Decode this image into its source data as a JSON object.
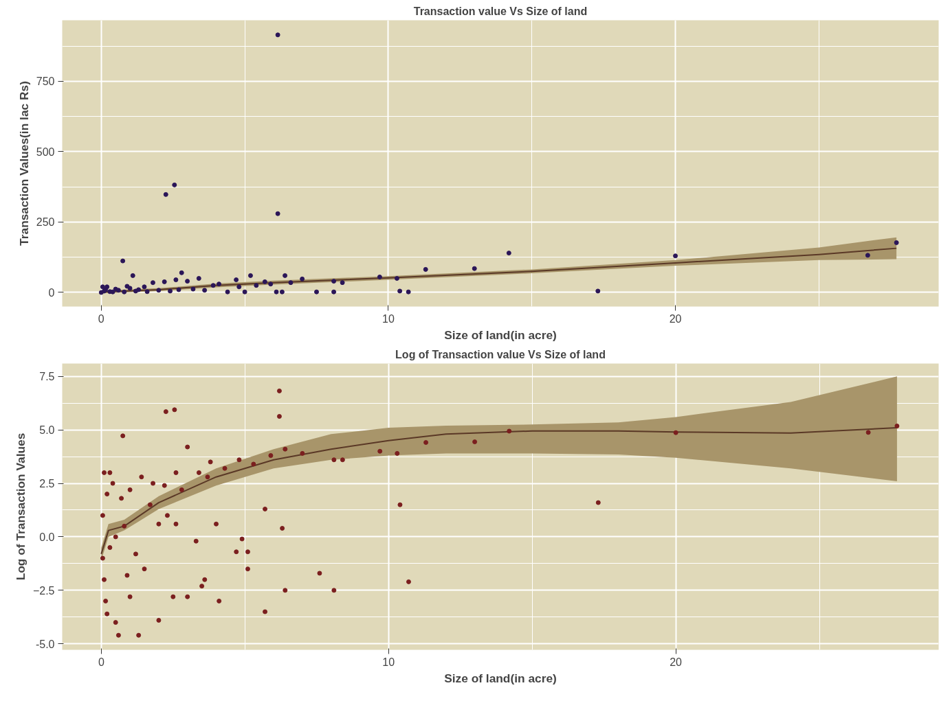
{
  "chart_data": [
    {
      "type": "scatter",
      "title": "Transaction value Vs Size of land",
      "xlabel": "Size of land(in acre)",
      "ylabel": "Transaction Values(in lac Rs)",
      "xlim": [
        -1.36,
        29.17
      ],
      "ylim": [
        -50,
        967
      ],
      "xticks": [
        0,
        10,
        20
      ],
      "yticks": [
        0,
        250,
        500,
        750
      ],
      "grid": true,
      "series": [
        {
          "marker": "circle",
          "color": "#2b1658",
          "x": [
            6.15,
            2.25,
            2.55,
            6.15,
            0.75,
            14.2,
            20,
            26.7,
            27.7,
            17.3,
            11.3,
            13,
            9.7,
            10.4,
            10.7,
            10.3,
            8.1,
            8.1,
            8.4,
            7.5,
            7.0,
            6.4,
            5.2,
            2.8,
            1.1,
            6.3,
            6.1,
            5.7,
            5.0,
            4.7,
            4.1,
            3.4,
            3.0,
            2.6,
            2.2,
            1.8,
            1.5,
            1.0,
            0.5,
            0.2,
            0.1,
            0,
            0.3,
            0.6,
            0.8,
            1.2,
            1.6,
            2.0,
            2.4,
            2.7,
            3.2,
            3.6,
            3.9,
            4.4,
            4.8,
            5.4,
            5.9,
            6.6,
            0.05,
            0.15,
            0.4,
            0.9,
            1.3
          ],
          "values": [
            915,
            348,
            382,
            280,
            112,
            140,
            130,
            132,
            177,
            5,
            82,
            85,
            55,
            5,
            2,
            50,
            40,
            2,
            35,
            2,
            48,
            60,
            60,
            70,
            60,
            2,
            2,
            38,
            2,
            45,
            30,
            50,
            40,
            45,
            38,
            35,
            20,
            15,
            12,
            20,
            5,
            0,
            3,
            8,
            2,
            5,
            3,
            8,
            5,
            10,
            12,
            8,
            25,
            2,
            20,
            25,
            30,
            35,
            20,
            10,
            2,
            22,
            10
          ]
        },
        {
          "type": "line",
          "color": "#5a3826",
          "x": [
            0,
            2,
            4,
            6,
            10,
            15,
            20,
            25,
            27.7
          ],
          "values": [
            2,
            10,
            25,
            35,
            52,
            75,
            105,
            135,
            157
          ],
          "lower": [
            -3,
            5,
            18,
            28,
            45,
            68,
            95,
            115,
            118
          ],
          "upper": [
            7,
            15,
            32,
            42,
            58,
            82,
            115,
            160,
            196
          ]
        }
      ]
    },
    {
      "type": "scatter",
      "title": "Log of Transaction value Vs Size of land",
      "xlabel": "Size of land(in acre)",
      "ylabel": "Log of Transaction Values",
      "xlim": [
        -1.36,
        29.15
      ],
      "ylim": [
        -5.28,
        8.1
      ],
      "xticks": [
        0,
        10,
        20
      ],
      "yticks": [
        {
          "value": -5,
          "label": "-5.0"
        },
        -2.5,
        {
          "value": 0,
          "label": "0.0"
        },
        2.5,
        {
          "value": 5,
          "label": "5.0"
        },
        7.5
      ],
      "grid": true,
      "series": [
        {
          "marker": "circle",
          "color": "#7b1f1f",
          "x": [
            6.2,
            6.2,
            2.25,
            2.55,
            0.75,
            14.2,
            20,
            26.7,
            27.7,
            17.3,
            11.3,
            13,
            9.7,
            10.4,
            10.7,
            10.3,
            8.1,
            8.1,
            8.4,
            7.6,
            7.0,
            6.4,
            5.7,
            5.7,
            6.3,
            6.4,
            5.1,
            5.1,
            4.7,
            4.9,
            4.1,
            3.6,
            3.5,
            3.3,
            0.6,
            1.3,
            0.2,
            0.5,
            2.0,
            1.0,
            2.5,
            3.0,
            1.5,
            0.1,
            0.3,
            0.8,
            1.2,
            2.0,
            2.6,
            4.0,
            0.05,
            0.2,
            0.4,
            0.7,
            1.0,
            1.4,
            1.8,
            2.2,
            2.6,
            3.0,
            3.4,
            3.8,
            4.3,
            4.8,
            5.3,
            5.9,
            0.1,
            0.3,
            0.15,
            0.05,
            0.5,
            0.9,
            1.7,
            2.3,
            2.8,
            3.7
          ],
          "values": [
            6.82,
            5.63,
            5.85,
            5.94,
            4.72,
            4.94,
            4.87,
            4.88,
            5.18,
            1.6,
            4.41,
            4.44,
            4.0,
            1.5,
            -2.1,
            3.9,
            3.6,
            -2.5,
            3.6,
            -1.7,
            3.9,
            4.1,
            -3.5,
            1.3,
            0.4,
            -2.5,
            -0.7,
            -1.5,
            -0.7,
            -0.1,
            -3.0,
            -2.0,
            -2.3,
            -0.2,
            -4.6,
            -4.6,
            -3.6,
            -4.0,
            -3.9,
            -2.8,
            -2.8,
            -2.8,
            -1.5,
            -2.0,
            -0.5,
            0.5,
            -0.8,
            0.6,
            0.6,
            0.6,
            1.0,
            2.0,
            2.5,
            1.8,
            2.2,
            2.8,
            2.5,
            2.4,
            3.0,
            4.2,
            3.0,
            3.5,
            3.2,
            3.6,
            3.4,
            3.8,
            3.0,
            3.0,
            -3.0,
            -1.0,
            0.0,
            -1.8,
            1.5,
            1.0,
            2.2,
            2.8
          ]
        },
        {
          "type": "line",
          "color": "#5a3826",
          "x": [
            0,
            0.25,
            0.8,
            2,
            4,
            6,
            8,
            10,
            12,
            15,
            18,
            20,
            24,
            27.7
          ],
          "values": [
            -0.8,
            0.3,
            0.5,
            1.6,
            2.8,
            3.6,
            4.1,
            4.5,
            4.8,
            4.95,
            4.95,
            4.9,
            4.85,
            5.1
          ],
          "lower": [
            -1.1,
            0.0,
            0.3,
            1.3,
            2.4,
            3.2,
            3.6,
            3.8,
            3.9,
            3.9,
            3.85,
            3.7,
            3.2,
            2.6
          ],
          "upper": [
            -0.5,
            0.6,
            0.8,
            1.9,
            3.2,
            4.1,
            4.8,
            5.1,
            5.2,
            5.25,
            5.35,
            5.6,
            6.3,
            7.5
          ]
        }
      ]
    }
  ]
}
